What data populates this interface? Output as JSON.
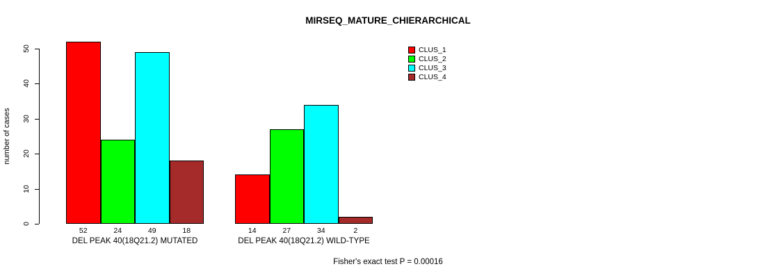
{
  "chart_data": {
    "type": "bar",
    "title": "MIRSEQ_MATURE_CHIERARCHICAL",
    "ylabel": "number of cases",
    "ylim": [
      0,
      50
    ],
    "yticks": [
      0,
      10,
      20,
      30,
      40,
      50
    ],
    "grid": false,
    "legend_position": "top-right",
    "series": [
      {
        "name": "CLUS_1",
        "color": "#FF0000"
      },
      {
        "name": "CLUS_2",
        "color": "#00FF00"
      },
      {
        "name": "CLUS_3",
        "color": "#00FFFF"
      },
      {
        "name": "CLUS_4",
        "color": "#A52A2A"
      }
    ],
    "groups": [
      {
        "label": "DEL PEAK 40(18Q21.2) MUTATED",
        "values": [
          52,
          24,
          49,
          18
        ]
      },
      {
        "label": "DEL PEAK 40(18Q21.2) WILD-TYPE",
        "values": [
          14,
          27,
          34,
          2
        ]
      }
    ],
    "annotation": "Fisher's exact test P = 0.00016"
  }
}
